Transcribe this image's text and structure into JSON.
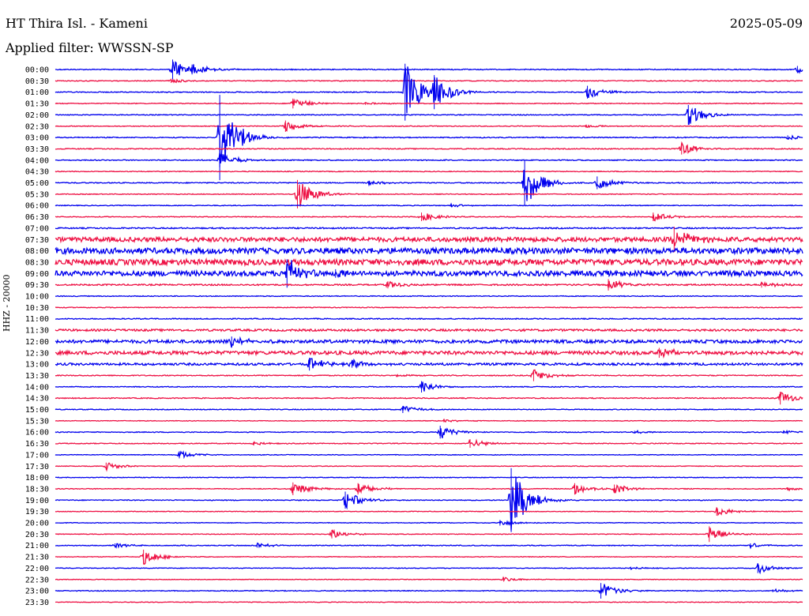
{
  "header": {
    "station": "HT Thira Isl. - Kameni",
    "date": "2025-05-09",
    "filter": "Applied filter: WWSSN-SP"
  },
  "chart_data": {
    "type": "helicorder",
    "ylabel": "HHZ - 20000",
    "colors": {
      "even": "#0000ee",
      "odd": "#ee1144"
    },
    "rows": [
      {
        "label": "00:00",
        "noise": 0.6,
        "events": [
          {
            "t": 0.157,
            "a": 14
          },
          {
            "t": 0.183,
            "a": 7
          },
          {
            "t": 0.993,
            "a": 5
          }
        ]
      },
      {
        "label": "00:30",
        "noise": 0.5,
        "events": [
          {
            "t": 0.155,
            "a": 3
          }
        ]
      },
      {
        "label": "01:00",
        "noise": 0.6,
        "events": [
          {
            "t": 0.468,
            "a": 40
          },
          {
            "t": 0.507,
            "a": 24
          },
          {
            "t": 0.712,
            "a": 9
          }
        ]
      },
      {
        "label": "01:30",
        "noise": 0.5,
        "events": [
          {
            "t": 0.318,
            "a": 7
          },
          {
            "t": 0.415,
            "a": 2
          }
        ]
      },
      {
        "label": "02:00",
        "noise": 0.5,
        "events": [
          {
            "t": 0.847,
            "a": 14
          }
        ]
      },
      {
        "label": "02:30",
        "noise": 0.5,
        "events": [
          {
            "t": 0.308,
            "a": 8
          },
          {
            "t": 0.71,
            "a": 2
          }
        ]
      },
      {
        "label": "03:00",
        "noise": 0.6,
        "events": [
          {
            "t": 0.22,
            "a": 60
          },
          {
            "t": 0.98,
            "a": 3
          }
        ]
      },
      {
        "label": "03:30",
        "noise": 0.6,
        "events": [
          {
            "t": 0.838,
            "a": 8
          }
        ]
      },
      {
        "label": "04:00",
        "noise": 0.6,
        "events": [
          {
            "t": 0.22,
            "a": 10
          }
        ]
      },
      {
        "label": "04:30",
        "noise": 0.5,
        "events": []
      },
      {
        "label": "05:00",
        "noise": 0.6,
        "events": [
          {
            "t": 0.42,
            "a": 3
          },
          {
            "t": 0.628,
            "a": 32
          },
          {
            "t": 0.725,
            "a": 9
          }
        ]
      },
      {
        "label": "05:30",
        "noise": 0.5,
        "events": [
          {
            "t": 0.324,
            "a": 20
          }
        ]
      },
      {
        "label": "06:00",
        "noise": 0.5,
        "events": [
          {
            "t": 0.53,
            "a": 2
          }
        ]
      },
      {
        "label": "06:30",
        "noise": 0.5,
        "events": [
          {
            "t": 0.49,
            "a": 6
          },
          {
            "t": 0.8,
            "a": 6
          }
        ]
      },
      {
        "label": "07:00",
        "noise": 0.8,
        "events": []
      },
      {
        "label": "07:30",
        "noise": 2.8,
        "events": [
          {
            "t": 0.828,
            "a": 18
          }
        ]
      },
      {
        "label": "08:00",
        "noise": 3.6,
        "events": []
      },
      {
        "label": "08:30",
        "noise": 3.6,
        "events": []
      },
      {
        "label": "09:00",
        "noise": 3.2,
        "events": [
          {
            "t": 0.31,
            "a": 20
          },
          {
            "t": 0.375,
            "a": 6
          }
        ]
      },
      {
        "label": "09:30",
        "noise": 0.9,
        "events": [
          {
            "t": 0.445,
            "a": 5
          },
          {
            "t": 0.74,
            "a": 8
          },
          {
            "t": 0.945,
            "a": 4
          }
        ]
      },
      {
        "label": "10:00",
        "noise": 0.5,
        "events": []
      },
      {
        "label": "10:30",
        "noise": 0.5,
        "events": []
      },
      {
        "label": "11:00",
        "noise": 0.6,
        "events": []
      },
      {
        "label": "11:30",
        "noise": 1.3,
        "events": []
      },
      {
        "label": "12:00",
        "noise": 2.0,
        "events": [
          {
            "t": 0.236,
            "a": 7
          },
          {
            "t": 0.45,
            "a": 2
          }
        ]
      },
      {
        "label": "12:30",
        "noise": 2.2,
        "events": [
          {
            "t": 0.808,
            "a": 7
          }
        ]
      },
      {
        "label": "13:00",
        "noise": 1.4,
        "events": [
          {
            "t": 0.34,
            "a": 9
          },
          {
            "t": 0.397,
            "a": 5
          }
        ]
      },
      {
        "label": "13:30",
        "noise": 0.6,
        "events": [
          {
            "t": 0.64,
            "a": 8
          },
          {
            "t": 0.458,
            "a": 2
          }
        ]
      },
      {
        "label": "14:00",
        "noise": 0.5,
        "events": [
          {
            "t": 0.49,
            "a": 8
          }
        ]
      },
      {
        "label": "14:30",
        "noise": 0.6,
        "events": [
          {
            "t": 0.97,
            "a": 9
          }
        ]
      },
      {
        "label": "15:00",
        "noise": 0.5,
        "events": [
          {
            "t": 0.465,
            "a": 5
          }
        ]
      },
      {
        "label": "15:30",
        "noise": 0.4,
        "events": [
          {
            "t": 0.52,
            "a": 2
          }
        ]
      },
      {
        "label": "16:00",
        "noise": 0.5,
        "events": [
          {
            "t": 0.515,
            "a": 9
          },
          {
            "t": 0.775,
            "a": 2
          },
          {
            "t": 0.975,
            "a": 2
          }
        ]
      },
      {
        "label": "16:30",
        "noise": 0.5,
        "events": [
          {
            "t": 0.555,
            "a": 6
          },
          {
            "t": 0.265,
            "a": 2
          }
        ]
      },
      {
        "label": "17:00",
        "noise": 0.4,
        "events": [
          {
            "t": 0.166,
            "a": 5
          }
        ]
      },
      {
        "label": "17:30",
        "noise": 0.4,
        "events": [
          {
            "t": 0.068,
            "a": 5
          }
        ]
      },
      {
        "label": "18:00",
        "noise": 0.4,
        "events": []
      },
      {
        "label": "18:30",
        "noise": 0.5,
        "events": [
          {
            "t": 0.318,
            "a": 9
          },
          {
            "t": 0.405,
            "a": 8
          },
          {
            "t": 0.695,
            "a": 8
          },
          {
            "t": 0.748,
            "a": 6
          },
          {
            "t": 0.98,
            "a": 2
          }
        ]
      },
      {
        "label": "19:00",
        "noise": 0.5,
        "events": [
          {
            "t": 0.388,
            "a": 12
          },
          {
            "t": 0.61,
            "a": 45
          }
        ]
      },
      {
        "label": "19:30",
        "noise": 0.4,
        "events": [
          {
            "t": 0.885,
            "a": 6
          }
        ]
      },
      {
        "label": "20:00",
        "noise": 0.4,
        "events": [
          {
            "t": 0.595,
            "a": 4
          }
        ]
      },
      {
        "label": "20:30",
        "noise": 0.4,
        "events": [
          {
            "t": 0.37,
            "a": 6
          },
          {
            "t": 0.875,
            "a": 11
          }
        ]
      },
      {
        "label": "21:00",
        "noise": 0.5,
        "events": [
          {
            "t": 0.08,
            "a": 3
          },
          {
            "t": 0.27,
            "a": 3
          },
          {
            "t": 0.93,
            "a": 3
          }
        ]
      },
      {
        "label": "21:30",
        "noise": 0.4,
        "events": [
          {
            "t": 0.118,
            "a": 10
          }
        ]
      },
      {
        "label": "22:00",
        "noise": 0.4,
        "events": [
          {
            "t": 0.94,
            "a": 7
          },
          {
            "t": 0.77,
            "a": 2
          }
        ]
      },
      {
        "label": "22:30",
        "noise": 0.4,
        "events": [
          {
            "t": 0.6,
            "a": 3
          }
        ]
      },
      {
        "label": "23:00",
        "noise": 0.5,
        "events": [
          {
            "t": 0.73,
            "a": 11
          },
          {
            "t": 0.96,
            "a": 2
          }
        ]
      },
      {
        "label": "23:30",
        "noise": 0.4,
        "events": []
      }
    ]
  }
}
